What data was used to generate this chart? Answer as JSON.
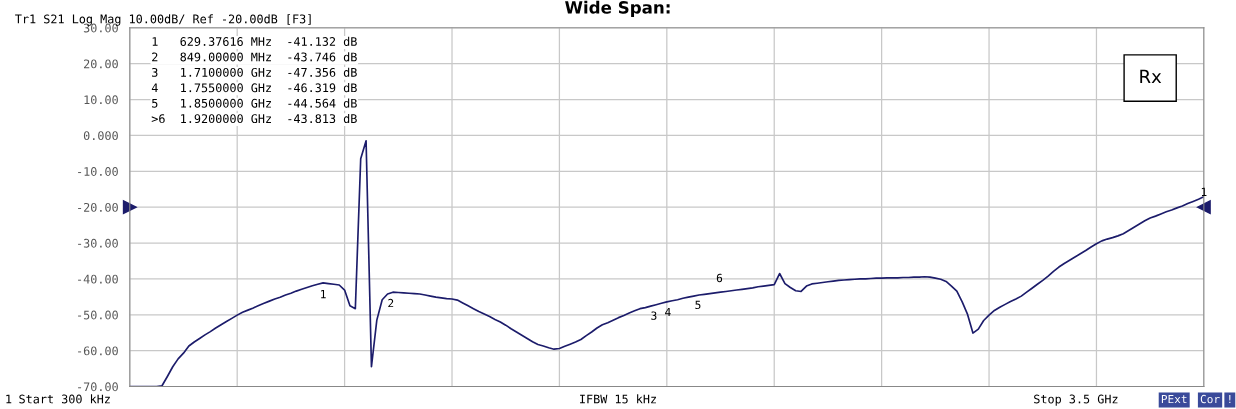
{
  "chart_data": {
    "type": "line",
    "title": "Wide Span:",
    "subtitle": "Tr1 S21 Log Mag 10.00dB/ Ref -20.00dB [F3]",
    "categories": [
      null,
      null,
      null,
      null,
      null,
      null,
      null,
      null,
      null,
      null,
      null,
      null,
      null,
      null,
      null,
      null,
      null,
      null,
      null,
      null,
      null,
      null,
      null,
      null,
      null,
      null,
      null,
      null,
      null,
      null,
      null,
      null,
      null,
      null,
      null,
      null,
      null,
      null,
      null,
      null,
      null,
      null,
      null,
      null,
      null,
      null,
      null,
      null,
      null,
      null,
      null,
      null,
      null,
      null,
      null,
      null,
      null,
      null,
      null,
      null,
      null,
      null,
      null,
      null,
      null,
      null,
      null,
      null,
      null,
      null,
      null,
      null,
      null,
      null,
      null,
      null,
      null,
      null,
      null,
      null,
      null,
      null,
      null,
      null,
      null,
      null,
      null,
      null,
      null,
      null,
      null,
      null,
      null,
      null,
      null,
      null,
      null,
      null,
      null,
      null,
      null,
      null,
      null,
      null,
      null,
      null,
      null,
      null,
      null,
      null,
      null,
      null,
      null,
      null,
      null,
      null,
      null,
      null,
      null,
      null,
      null,
      null,
      null,
      null,
      null,
      null,
      null,
      null,
      null,
      null,
      null,
      null,
      null,
      null,
      null,
      null,
      null,
      null,
      null,
      null,
      null,
      null,
      null,
      null,
      null,
      null,
      null,
      null,
      null,
      null,
      null,
      null,
      null,
      null,
      null,
      null,
      null,
      null,
      null,
      null,
      null,
      null,
      null,
      null,
      null,
      null,
      null,
      null,
      null,
      null,
      null,
      null,
      null,
      null,
      null,
      null,
      null,
      null,
      null,
      null,
      null,
      null,
      null,
      null,
      null,
      null,
      null,
      null,
      null,
      null,
      null,
      null,
      null,
      null,
      null,
      null,
      null,
      null,
      null,
      null,
      null
    ],
    "series": [
      {
        "color": "#1c1c6b",
        "values": [
          -70,
          -70,
          -70,
          -70,
          -70,
          -70,
          -69.8,
          -67.2,
          -64.5,
          -62.3,
          -60.7,
          -58.7,
          -57.6,
          -56.6,
          -55.6,
          -54.7,
          -53.7,
          -52.8,
          -51.9,
          -51.0,
          -50.1,
          -49.3,
          -48.7,
          -48.1,
          -47.4,
          -46.8,
          -46.2,
          -45.6,
          -45.1,
          -44.5,
          -44.0,
          -43.4,
          -42.9,
          -42.4,
          -41.9,
          -41.5,
          -41.1,
          -41.3,
          -41.5,
          -41.7,
          -43.1,
          -47.5,
          -48.3,
          -6.5,
          -1.5,
          -64.5,
          -51.5,
          -45.8,
          -44.2,
          -43.7,
          -43.8,
          -43.9,
          -44.0,
          -44.1,
          -44.2,
          -44.5,
          -44.8,
          -45.1,
          -45.3,
          -45.5,
          -45.6,
          -45.9,
          -46.7,
          -47.5,
          -48.3,
          -49.1,
          -49.8,
          -50.5,
          -51.3,
          -52.0,
          -52.9,
          -53.9,
          -54.8,
          -55.7,
          -56.6,
          -57.5,
          -58.3,
          -58.7,
          -59.2,
          -59.6,
          -59.4,
          -58.8,
          -58.2,
          -57.6,
          -56.9,
          -55.8,
          -54.8,
          -53.7,
          -52.8,
          -52.2,
          -51.5,
          -50.8,
          -50.2,
          -49.5,
          -48.9,
          -48.3,
          -48.0,
          -47.6,
          -47.2,
          -46.8,
          -46.4,
          -46.1,
          -45.8,
          -45.4,
          -45.1,
          -44.8,
          -44.5,
          -44.3,
          -44.1,
          -43.9,
          -43.7,
          -43.5,
          -43.3,
          -43.1,
          -42.9,
          -42.7,
          -42.5,
          -42.2,
          -42.0,
          -41.8,
          -41.6,
          -38.5,
          -41.3,
          -42.4,
          -43.3,
          -43.5,
          -42.0,
          -41.4,
          -41.2,
          -41.0,
          -40.8,
          -40.6,
          -40.4,
          -40.3,
          -40.2,
          -40.1,
          -40.0,
          -40.0,
          -39.9,
          -39.8,
          -39.8,
          -39.7,
          -39.7,
          -39.7,
          -39.6,
          -39.6,
          -39.5,
          -39.5,
          -39.4,
          -39.5,
          -39.8,
          -40.1,
          -40.7,
          -42.0,
          -43.4,
          -46.4,
          -49.9,
          -55.1,
          -54.0,
          -51.6,
          -50.1,
          -48.8,
          -47.9,
          -47.1,
          -46.3,
          -45.6,
          -44.8,
          -43.7,
          -42.6,
          -41.5,
          -40.4,
          -39.2,
          -37.9,
          -36.7,
          -35.7,
          -34.8,
          -33.9,
          -33.0,
          -32.1,
          -31.1,
          -30.2,
          -29.4,
          -28.9,
          -28.5,
          -28.0,
          -27.4,
          -26.5,
          -25.6,
          -24.7,
          -23.8,
          -23.0,
          -22.5,
          -21.9,
          -21.3,
          -20.8,
          -20.2,
          -19.7,
          -19.0,
          -18.4,
          -17.8,
          -17.1
        ]
      }
    ],
    "ylim": [
      -70,
      30
    ],
    "yticks": [
      {
        "value": 30,
        "label": "30.00"
      },
      {
        "value": 20,
        "label": "20.00"
      },
      {
        "value": 10,
        "label": "10.00"
      },
      {
        "value": 0,
        "label": "0.000"
      },
      {
        "value": -10,
        "label": "-10.00"
      },
      {
        "value": -20,
        "label": "-20.00"
      },
      {
        "value": -30,
        "label": "-30.00"
      },
      {
        "value": -40,
        "label": "-40.00"
      },
      {
        "value": -50,
        "label": "-50.00"
      },
      {
        "value": -60,
        "label": "-60.00"
      },
      {
        "value": -70,
        "label": "-70.00"
      }
    ],
    "grid": true,
    "line_style": "solid",
    "annotations": [
      "1   629.37616 MHz  -41.132 dB",
      "2   849.00000 MHz  -43.746 dB",
      "3   1.7100000 GHz  -47.356 dB",
      "4   1.7550000 GHz  -46.319 dB",
      "5   1.8500000 GHz  -44.564 dB",
      ">6  1.9200000 GHz  -43.813 dB",
      "Rx",
      "1",
      "Start 300 kHz",
      "IFBW 15 kHz",
      "Stop 3.5 GHz",
      "PExt",
      "Cor",
      "!",
      "1",
      "2",
      "3",
      "4",
      "5",
      "6",
      "1"
    ]
  }
}
